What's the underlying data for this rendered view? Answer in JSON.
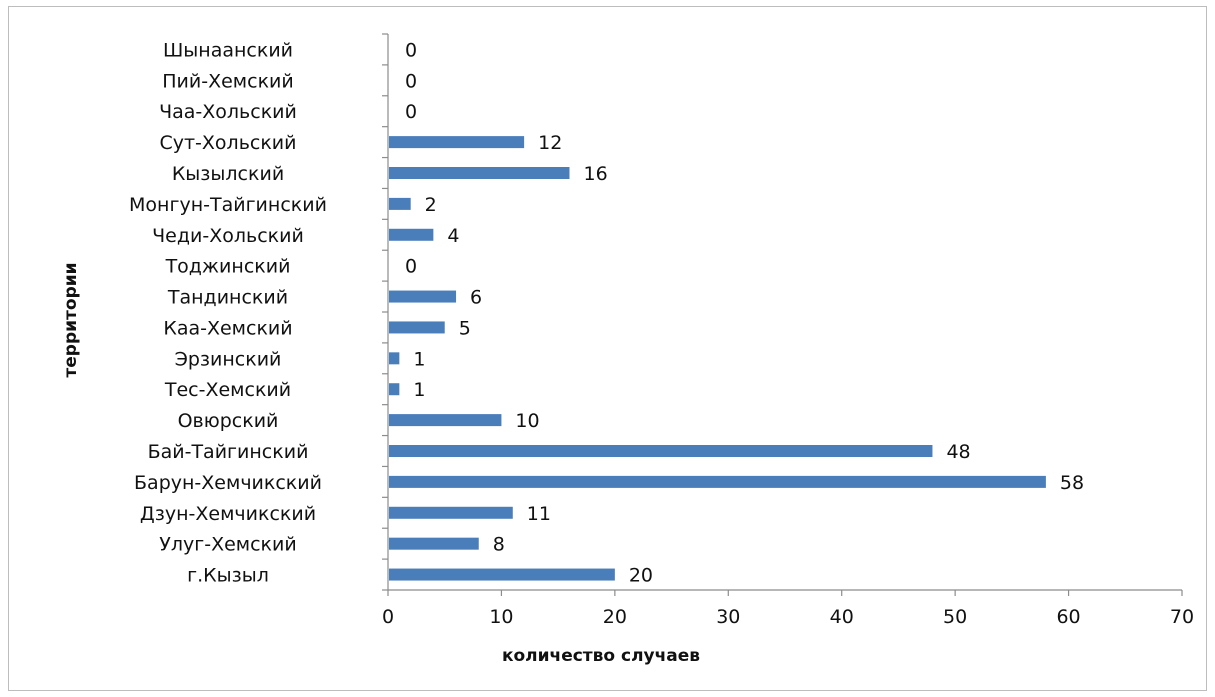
{
  "chart_data": {
    "type": "bar",
    "orientation": "horizontal",
    "categories": [
      "Шынаанский",
      "Пий-Хемский",
      "Чаа-Хольский",
      "Сут-Хольский",
      "Кызылский",
      "Монгун-Тайгинский",
      "Чеди-Хольский",
      "Тоджинский",
      "Тандинский",
      "Каа-Хемский",
      "Эрзинский",
      "Тес-Хемский",
      "Овюрский",
      "Бай-Тайгинский",
      "Барун-Хемчикский",
      "Дзун-Хемчикский",
      "Улуг-Хемский",
      "г.Кызыл"
    ],
    "values": [
      0,
      0,
      0,
      12,
      16,
      2,
      4,
      0,
      6,
      5,
      1,
      1,
      10,
      48,
      58,
      11,
      8,
      20
    ],
    "xlabel": "количество случаев",
    "ylabel": "территории",
    "xlim": [
      0,
      70
    ],
    "xticks": [
      0,
      10,
      20,
      30,
      40,
      50,
      60,
      70
    ],
    "grid": false,
    "legend": "none",
    "bar_color": "#4a7ebb"
  }
}
